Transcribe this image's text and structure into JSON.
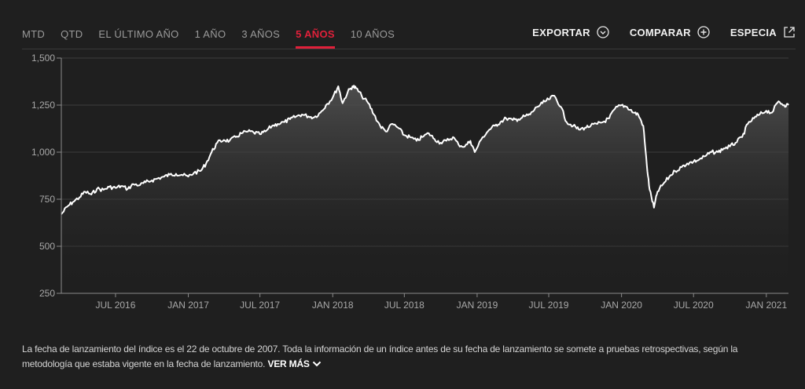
{
  "tabs": [
    {
      "label": "MTD",
      "active": false
    },
    {
      "label": "QTD",
      "active": false
    },
    {
      "label": "EL ÚLTIMO AÑO",
      "active": false
    },
    {
      "label": "1 AÑO",
      "active": false
    },
    {
      "label": "3 AÑOS",
      "active": false
    },
    {
      "label": "5 AÑOS",
      "active": true
    },
    {
      "label": "10 AÑOS",
      "active": false
    }
  ],
  "actions": {
    "export_label": "EXPORTAR",
    "export_icon": "chevron-circle-icon",
    "compare_label": "COMPARAR",
    "compare_icon": "plus-circle-icon",
    "specs_label": "ESPECIA",
    "specs_icon": "external-link-icon"
  },
  "colors": {
    "background": "#1f1f1f",
    "accent": "#e0203a",
    "line": "#ffffff"
  },
  "disclaimer": {
    "text": "La fecha de lanzamiento del índice es el 22 de octubre de 2007. Toda la información de un índice antes de su fecha de lanzamiento se somete a pruebas retrospectivas, según la metodología que estaba vigente en la fecha de lanzamiento.",
    "more_label": "VER MÁS"
  },
  "chart_data": {
    "type": "area",
    "title": "",
    "xlabel": "",
    "ylabel": "",
    "ylim": [
      250,
      1500
    ],
    "yticks": [
      {
        "value": 250,
        "label": "250"
      },
      {
        "value": 500,
        "label": "500"
      },
      {
        "value": 750,
        "label": "750"
      },
      {
        "value": 1000,
        "label": "1,000"
      },
      {
        "value": 1250,
        "label": "1,250"
      },
      {
        "value": 1500,
        "label": "1,500"
      }
    ],
    "xlim": [
      "2016-02-15",
      "2021-02-26"
    ],
    "xticks": [
      {
        "date": "2016-07-01",
        "label": "JUL 2016"
      },
      {
        "date": "2017-01-01",
        "label": "JAN 2017"
      },
      {
        "date": "2017-07-01",
        "label": "JUL 2017"
      },
      {
        "date": "2018-01-01",
        "label": "JAN 2018"
      },
      {
        "date": "2018-07-01",
        "label": "JUL 2018"
      },
      {
        "date": "2019-01-01",
        "label": "JAN 2019"
      },
      {
        "date": "2019-07-01",
        "label": "JUL 2019"
      },
      {
        "date": "2020-01-01",
        "label": "JAN 2020"
      },
      {
        "date": "2020-07-01",
        "label": "JUL 2020"
      },
      {
        "date": "2021-01-01",
        "label": "JAN 2021"
      }
    ],
    "grid": "horizontal",
    "series": [
      {
        "x": [
          "2016-02-15",
          "2016-03-01",
          "2016-03-15",
          "2016-04-01",
          "2016-04-15",
          "2016-05-01",
          "2016-05-15",
          "2016-06-01",
          "2016-06-15",
          "2016-07-01",
          "2016-07-15",
          "2016-08-01",
          "2016-08-15",
          "2016-09-01",
          "2016-09-15",
          "2016-10-01",
          "2016-10-15",
          "2016-11-01",
          "2016-11-15",
          "2016-12-01",
          "2016-12-15",
          "2017-01-01",
          "2017-01-15",
          "2017-02-01",
          "2017-02-15",
          "2017-03-01",
          "2017-03-15",
          "2017-04-01",
          "2017-04-15",
          "2017-05-01",
          "2017-05-15",
          "2017-06-01",
          "2017-06-15",
          "2017-07-01",
          "2017-07-15",
          "2017-08-01",
          "2017-08-15",
          "2017-09-01",
          "2017-09-15",
          "2017-10-01",
          "2017-10-15",
          "2017-11-01",
          "2017-11-15",
          "2017-12-01",
          "2017-12-15",
          "2018-01-01",
          "2018-01-15",
          "2018-01-26",
          "2018-02-08",
          "2018-02-20",
          "2018-03-01",
          "2018-03-15",
          "2018-04-01",
          "2018-04-15",
          "2018-05-01",
          "2018-05-15",
          "2018-06-01",
          "2018-06-15",
          "2018-07-01",
          "2018-07-15",
          "2018-08-01",
          "2018-08-15",
          "2018-09-01",
          "2018-09-15",
          "2018-10-01",
          "2018-10-15",
          "2018-11-01",
          "2018-11-15",
          "2018-12-01",
          "2018-12-15",
          "2018-12-26",
          "2019-01-15",
          "2019-02-01",
          "2019-02-15",
          "2019-03-01",
          "2019-03-15",
          "2019-04-01",
          "2019-04-15",
          "2019-05-01",
          "2019-05-15",
          "2019-06-01",
          "2019-06-15",
          "2019-07-01",
          "2019-07-15",
          "2019-08-01",
          "2019-08-15",
          "2019-09-01",
          "2019-09-15",
          "2019-10-01",
          "2019-10-15",
          "2019-11-01",
          "2019-11-15",
          "2019-12-01",
          "2019-12-15",
          "2020-01-01",
          "2020-01-15",
          "2020-02-01",
          "2020-02-12",
          "2020-02-25",
          "2020-03-05",
          "2020-03-12",
          "2020-03-23",
          "2020-04-01",
          "2020-04-15",
          "2020-05-01",
          "2020-05-15",
          "2020-06-01",
          "2020-06-15",
          "2020-07-01",
          "2020-07-15",
          "2020-08-01",
          "2020-08-15",
          "2020-09-01",
          "2020-09-15",
          "2020-10-01",
          "2020-10-15",
          "2020-11-01",
          "2020-11-15",
          "2020-12-01",
          "2020-12-15",
          "2021-01-01",
          "2021-01-15",
          "2021-02-01",
          "2021-02-15",
          "2021-02-26"
        ],
        "y": [
          670,
          710,
          735,
          760,
          790,
          775,
          805,
          800,
          815,
          810,
          820,
          805,
          830,
          825,
          840,
          850,
          860,
          870,
          880,
          885,
          880,
          870,
          890,
          900,
          940,
          1000,
          1050,
          1065,
          1060,
          1080,
          1100,
          1110,
          1105,
          1095,
          1110,
          1140,
          1150,
          1160,
          1175,
          1190,
          1200,
          1190,
          1185,
          1210,
          1250,
          1290,
          1350,
          1260,
          1320,
          1350,
          1340,
          1300,
          1260,
          1200,
          1140,
          1110,
          1150,
          1130,
          1090,
          1080,
          1060,
          1080,
          1100,
          1070,
          1050,
          1060,
          1080,
          1040,
          1030,
          1060,
          1000,
          1080,
          1120,
          1140,
          1160,
          1180,
          1170,
          1175,
          1190,
          1200,
          1240,
          1260,
          1280,
          1300,
          1240,
          1160,
          1140,
          1120,
          1130,
          1140,
          1150,
          1160,
          1180,
          1230,
          1250,
          1240,
          1210,
          1200,
          1140,
          930,
          800,
          705,
          790,
          830,
          870,
          900,
          920,
          940,
          950,
          960,
          980,
          1000,
          1000,
          1020,
          1030,
          1050,
          1080,
          1150,
          1180,
          1200,
          1220,
          1210,
          1270,
          1250,
          1250
        ]
      }
    ]
  }
}
